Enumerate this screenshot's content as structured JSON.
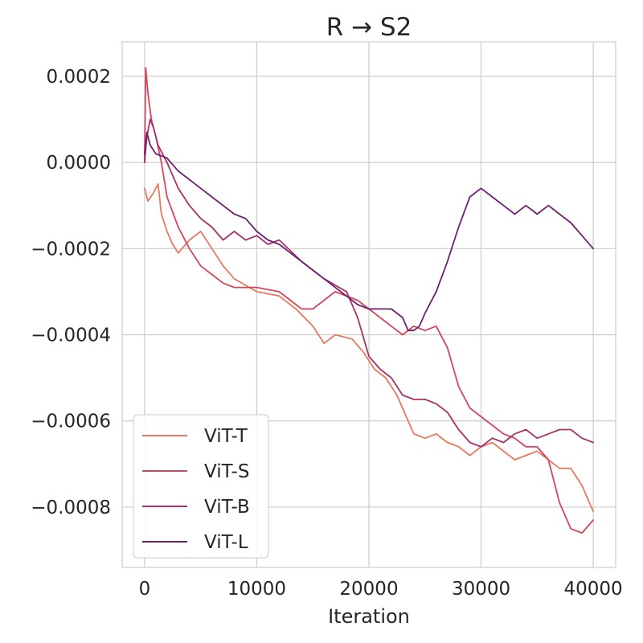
{
  "chart_data": {
    "type": "line",
    "title": "R → S2",
    "xlabel": "Iteration",
    "ylabel": "",
    "xlim": [
      -2000,
      42000
    ],
    "ylim": [
      -0.00094,
      0.00028
    ],
    "grid": true,
    "legend_position": "lower-left",
    "x_ticks": [
      {
        "value": 0,
        "label": "0"
      },
      {
        "value": 10000,
        "label": "10000"
      },
      {
        "value": 20000,
        "label": "20000"
      },
      {
        "value": 30000,
        "label": "30000"
      },
      {
        "value": 40000,
        "label": "40000"
      }
    ],
    "y_ticks": [
      {
        "value": 0.0002,
        "label": "0.0002"
      },
      {
        "value": 0.0,
        "label": "0.0000"
      },
      {
        "value": -0.0002,
        "label": "−0.0002"
      },
      {
        "value": -0.0004,
        "label": "−0.0004"
      },
      {
        "value": -0.0006,
        "label": "−0.0006"
      },
      {
        "value": -0.0008,
        "label": "−0.0008"
      }
    ],
    "series": [
      {
        "name": "ViT-T",
        "color": "#e8795e",
        "x": [
          0,
          300,
          800,
          1200,
          1500,
          2000,
          2500,
          3000,
          4000,
          5000,
          6000,
          7000,
          8000,
          10000,
          12000,
          13500,
          15000,
          16000,
          17000,
          18500,
          19500,
          20500,
          21500,
          22500,
          23500,
          24000,
          25000,
          26000,
          27000,
          28000,
          29000,
          30000,
          31000,
          32000,
          33000,
          34000,
          35000,
          36000,
          37000,
          38000,
          39000,
          40000
        ],
        "y": [
          -6e-05,
          -9e-05,
          -7e-05,
          -5e-05,
          -0.00012,
          -0.00016,
          -0.00019,
          -0.00021,
          -0.00018,
          -0.00016,
          -0.0002,
          -0.00024,
          -0.00027,
          -0.0003,
          -0.00031,
          -0.00034,
          -0.00038,
          -0.00042,
          -0.0004,
          -0.00041,
          -0.00044,
          -0.00048,
          -0.0005,
          -0.00054,
          -0.0006,
          -0.00063,
          -0.00064,
          -0.00063,
          -0.00065,
          -0.00066,
          -0.00068,
          -0.00066,
          -0.00065,
          -0.00067,
          -0.00069,
          -0.00068,
          -0.00067,
          -0.00069,
          -0.00071,
          -0.00071,
          -0.00075,
          -0.00081
        ]
      },
      {
        "name": "ViT-S",
        "color": "#d6455b",
        "x": [
          0,
          100,
          300,
          600,
          1000,
          1500,
          2000,
          3000,
          4000,
          5000,
          6000,
          7000,
          8000,
          10000,
          12000,
          14000,
          15000,
          16000,
          17000,
          18000,
          19000,
          20000,
          21000,
          22000,
          23000,
          24000,
          25000,
          26000,
          27000,
          28000,
          29000,
          30000,
          31000,
          32000,
          33000,
          34000,
          35000,
          36000,
          37000,
          38000,
          39000,
          40000
        ],
        "y": [
          0.0,
          0.00022,
          0.00016,
          0.0001,
          6e-05,
          0.0,
          -8e-05,
          -0.00015,
          -0.0002,
          -0.00024,
          -0.00026,
          -0.00028,
          -0.00029,
          -0.00029,
          -0.0003,
          -0.00034,
          -0.00034,
          -0.00032,
          -0.0003,
          -0.00031,
          -0.00032,
          -0.00034,
          -0.00036,
          -0.00038,
          -0.0004,
          -0.00038,
          -0.00039,
          -0.00038,
          -0.00043,
          -0.00052,
          -0.00057,
          -0.00059,
          -0.00061,
          -0.00063,
          -0.00064,
          -0.00066,
          -0.00066,
          -0.00069,
          -0.00079,
          -0.00085,
          -0.00086,
          -0.00083
        ]
      },
      {
        "name": "ViT-B",
        "color": "#a8306b",
        "x": [
          0,
          200,
          500,
          800,
          1200,
          2000,
          3000,
          4000,
          5000,
          6000,
          7000,
          8000,
          9000,
          10000,
          11000,
          12000,
          14000,
          16000,
          18000,
          19000,
          20000,
          21000,
          22000,
          23000,
          24000,
          25000,
          26000,
          27000,
          28000,
          29000,
          30000,
          31000,
          32000,
          33000,
          34000,
          35000,
          36000,
          37000,
          38000,
          39000,
          40000
        ],
        "y": [
          0.0,
          6e-05,
          0.0001,
          8e-05,
          4e-05,
          0.0,
          -6e-05,
          -0.0001,
          -0.00013,
          -0.00015,
          -0.00018,
          -0.00016,
          -0.00018,
          -0.00017,
          -0.00019,
          -0.00018,
          -0.00023,
          -0.00027,
          -0.0003,
          -0.00036,
          -0.00045,
          -0.00048,
          -0.0005,
          -0.00054,
          -0.00055,
          -0.00055,
          -0.00056,
          -0.00058,
          -0.00062,
          -0.00065,
          -0.00066,
          -0.00064,
          -0.00065,
          -0.00063,
          -0.00062,
          -0.00064,
          -0.00063,
          -0.00062,
          -0.00062,
          -0.00064,
          -0.00065
        ]
      },
      {
        "name": "ViT-L",
        "color": "#6f1f6f",
        "x": [
          0,
          200,
          500,
          1000,
          2000,
          3000,
          4000,
          5000,
          6000,
          7000,
          8000,
          9000,
          10000,
          11000,
          12000,
          13000,
          14000,
          15000,
          16000,
          17000,
          18000,
          19000,
          20000,
          21000,
          22000,
          23000,
          23500,
          24000,
          24500,
          25000,
          26000,
          27000,
          28000,
          29000,
          30000,
          31000,
          32000,
          33000,
          34000,
          35000,
          36000,
          37000,
          38000,
          39000,
          40000
        ],
        "y": [
          2e-05,
          7e-05,
          4e-05,
          2e-05,
          1e-05,
          -2e-05,
          -4e-05,
          -6e-05,
          -8e-05,
          -0.0001,
          -0.00012,
          -0.00013,
          -0.00016,
          -0.00018,
          -0.00019,
          -0.00021,
          -0.00023,
          -0.00025,
          -0.00027,
          -0.00029,
          -0.00031,
          -0.00033,
          -0.00034,
          -0.00034,
          -0.00034,
          -0.00036,
          -0.00039,
          -0.00039,
          -0.00038,
          -0.00035,
          -0.0003,
          -0.00023,
          -0.00015,
          -8e-05,
          -6e-05,
          -8e-05,
          -0.0001,
          -0.00012,
          -0.0001,
          -0.00012,
          -0.0001,
          -0.00012,
          -0.00014,
          -0.00017,
          -0.0002
        ]
      }
    ]
  }
}
